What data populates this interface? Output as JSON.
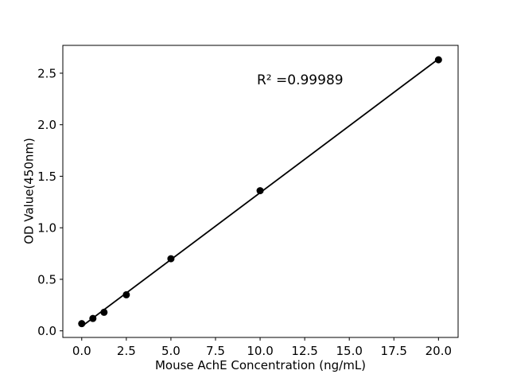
{
  "chart_data": {
    "type": "scatter",
    "title": "",
    "xlabel": "Mouse AchE Concentration (ng/mL)",
    "ylabel": "OD Value(450nm)",
    "points": {
      "x": [
        0,
        0.625,
        1.25,
        2.5,
        5,
        10,
        20
      ],
      "y": [
        0.07,
        0.12,
        0.18,
        0.35,
        0.7,
        1.36,
        2.63
      ]
    },
    "fit_line": {
      "x1": 0,
      "y1": 0.043,
      "x2": 20,
      "y2": 2.638,
      "slope": 0.13,
      "intercept": 0.043,
      "r_squared": 0.99989
    },
    "annotation": {
      "text": "R² =0.99989"
    },
    "x_ticks": [
      0.0,
      2.5,
      5.0,
      7.5,
      10.0,
      12.5,
      15.0,
      17.5,
      20.0
    ],
    "x_tick_labels": [
      "0.0",
      "2.5",
      "5.0",
      "7.5",
      "10.0",
      "12.5",
      "15.0",
      "17.5",
      "20.0"
    ],
    "y_ticks": [
      0.0,
      0.5,
      1.0,
      1.5,
      2.0,
      2.5
    ],
    "y_tick_labels": [
      "0.0",
      "0.5",
      "1.0",
      "1.5",
      "2.0",
      "2.5"
    ],
    "xlim": [
      -1.06,
      21.1
    ],
    "ylim": [
      -0.064,
      2.77
    ],
    "grid": false,
    "legend_position": "none",
    "colors": {
      "marker": "#000000",
      "line": "#000000",
      "text": "#000000",
      "spine": "#000000",
      "background": "#ffffff"
    }
  }
}
